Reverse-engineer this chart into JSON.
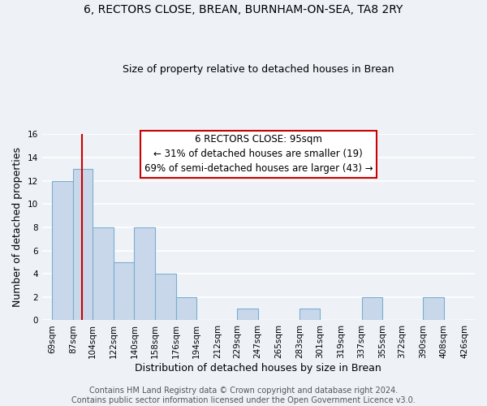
{
  "title": "6, RECTORS CLOSE, BREAN, BURNHAM-ON-SEA, TA8 2RY",
  "subtitle": "Size of property relative to detached houses in Brean",
  "xlabel": "Distribution of detached houses by size in Brean",
  "ylabel": "Number of detached properties",
  "bar_color": "#c8d8ea",
  "bar_edge_color": "#7aaed0",
  "bar_left_edges": [
    69,
    87,
    104,
    122,
    140,
    158,
    176,
    194,
    212,
    229,
    247,
    265,
    283,
    301,
    319,
    337,
    355,
    372,
    390,
    408
  ],
  "bar_widths": [
    18,
    17,
    18,
    18,
    18,
    18,
    18,
    18,
    17,
    18,
    18,
    18,
    18,
    18,
    18,
    18,
    17,
    18,
    18,
    18
  ],
  "bar_heights": [
    12,
    13,
    8,
    5,
    8,
    4,
    2,
    0,
    0,
    1,
    0,
    0,
    1,
    0,
    0,
    2,
    0,
    0,
    2,
    0
  ],
  "tick_labels": [
    "69sqm",
    "87sqm",
    "104sqm",
    "122sqm",
    "140sqm",
    "158sqm",
    "176sqm",
    "194sqm",
    "212sqm",
    "229sqm",
    "247sqm",
    "265sqm",
    "283sqm",
    "301sqm",
    "319sqm",
    "337sqm",
    "355sqm",
    "372sqm",
    "390sqm",
    "408sqm",
    "426sqm"
  ],
  "tick_positions": [
    69,
    87,
    104,
    122,
    140,
    158,
    176,
    194,
    212,
    229,
    247,
    265,
    283,
    301,
    319,
    337,
    355,
    372,
    390,
    408,
    426
  ],
  "ylim": [
    0,
    16
  ],
  "xlim": [
    60,
    435
  ],
  "yticks": [
    0,
    2,
    4,
    6,
    8,
    10,
    12,
    14,
    16
  ],
  "vline_x": 95,
  "vline_color": "#cc0000",
  "annotation_title": "6 RECTORS CLOSE: 95sqm",
  "annotation_line1": "← 31% of detached houses are smaller (19)",
  "annotation_line2": "69% of semi-detached houses are larger (43) →",
  "annotation_box_edge_color": "#cc0000",
  "annotation_box_face_color": "#ffffff",
  "footer1": "Contains HM Land Registry data © Crown copyright and database right 2024.",
  "footer2": "Contains public sector information licensed under the Open Government Licence v3.0.",
  "background_color": "#eef2f7",
  "grid_color": "#ffffff",
  "title_fontsize": 10,
  "subtitle_fontsize": 9,
  "axis_label_fontsize": 9,
  "tick_fontsize": 7.5,
  "footer_fontsize": 7
}
